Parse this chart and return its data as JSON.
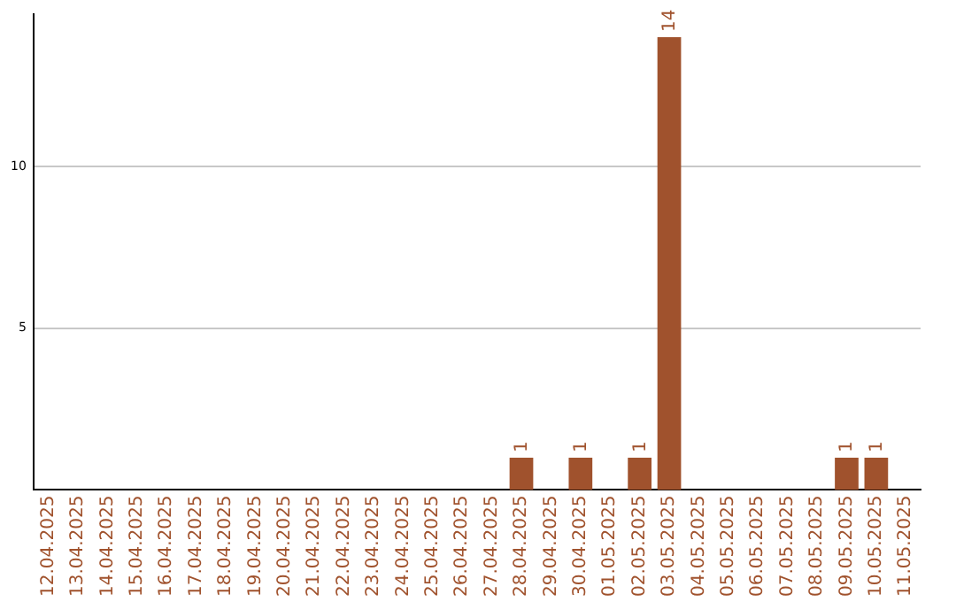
{
  "chart_data": {
    "type": "bar",
    "categories": [
      "12.04.2025",
      "13.04.2025",
      "14.04.2025",
      "15.04.2025",
      "16.04.2025",
      "17.04.2025",
      "18.04.2025",
      "19.04.2025",
      "20.04.2025",
      "21.04.2025",
      "22.04.2025",
      "23.04.2025",
      "24.04.2025",
      "25.04.2025",
      "26.04.2025",
      "27.04.2025",
      "28.04.2025",
      "29.04.2025",
      "30.04.2025",
      "01.05.2025",
      "02.05.2025",
      "03.05.2025",
      "04.05.2025",
      "05.05.2025",
      "06.05.2025",
      "07.05.2025",
      "08.05.2025",
      "09.05.2025",
      "10.05.2025",
      "11.05.2025"
    ],
    "values": [
      0,
      0,
      0,
      0,
      0,
      0,
      0,
      0,
      0,
      0,
      0,
      0,
      0,
      0,
      0,
      0,
      1,
      0,
      1,
      0,
      1,
      14,
      0,
      0,
      0,
      0,
      0,
      1,
      1,
      0
    ],
    "value_labels": [
      null,
      null,
      null,
      null,
      null,
      null,
      null,
      null,
      null,
      null,
      null,
      null,
      null,
      null,
      null,
      null,
      "1",
      null,
      "1",
      null,
      "1",
      "14",
      null,
      null,
      null,
      null,
      null,
      "1",
      "1",
      null
    ],
    "color": "#a0522d",
    "ylim": [
      0,
      14.7
    ],
    "yticks": [
      5,
      10
    ],
    "grid": "y",
    "legend": false
  }
}
